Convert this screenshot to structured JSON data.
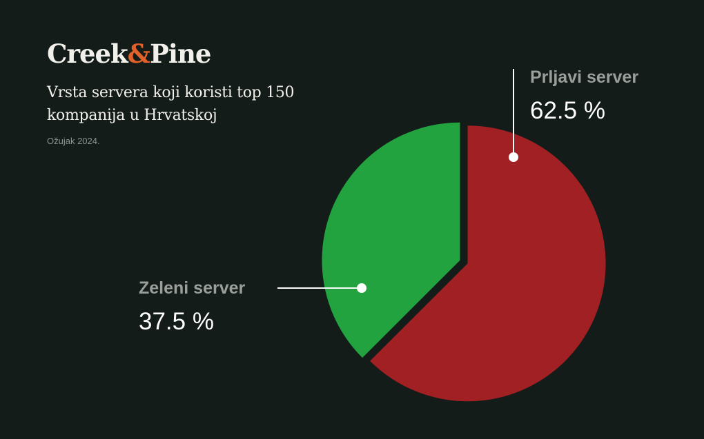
{
  "brand": {
    "name_part1": "Creek",
    "ampersand": "&",
    "name_part2": "Pine",
    "accent_color": "#e0622a"
  },
  "chart_data": {
    "type": "pie",
    "title": "Vrsta servera koji koristi top 150 kompanija u Hrvatskoj",
    "subtitle": "Ožujak 2024.",
    "slices": [
      {
        "name": "Prljavi server",
        "value": 62.5,
        "label": "62.5 %",
        "color": "#a02023"
      },
      {
        "name": "Zeleni server",
        "value": 37.5,
        "label": "37.5 %",
        "color": "#22a33f"
      }
    ],
    "legend": "callouts"
  }
}
